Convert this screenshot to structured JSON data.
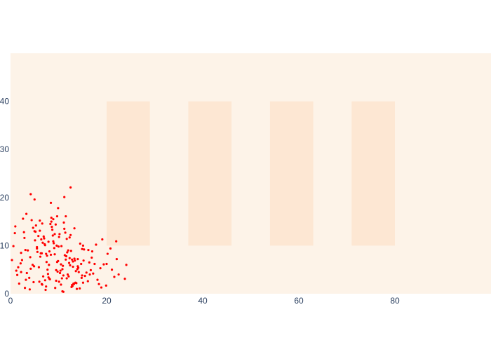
{
  "chart_data": {
    "type": "scatter",
    "title": "",
    "xlabel": "",
    "ylabel": "",
    "xlim": [
      0,
      100
    ],
    "ylim": [
      0,
      50
    ],
    "x_ticks": [
      0,
      20,
      40,
      60,
      80
    ],
    "y_ticks": [
      0,
      10,
      20,
      30,
      40
    ],
    "grid": false,
    "legend": "none",
    "colors": {
      "plot_background": "#fdf3e8",
      "band": "#fde7d3",
      "marker": "#ff0000",
      "tick_text": "#2a3f5f"
    },
    "bands": [
      {
        "x0": 20,
        "x1": 29,
        "y0": 10,
        "y1": 40
      },
      {
        "x0": 37,
        "x1": 46,
        "y0": 10,
        "y1": 40
      },
      {
        "x0": 54,
        "x1": 63,
        "y0": 10,
        "y1": 40
      },
      {
        "x0": 71,
        "x1": 80,
        "y0": 10,
        "y1": 40
      }
    ],
    "points": {
      "x": [
        4.2,
        8.1,
        12.3,
        6.5,
        10.0,
        14.2,
        2.1,
        9.3,
        11.7,
        5.6,
        7.8,
        13.4,
        3.9,
        16.1,
        8.8,
        10.9,
        6.2,
        12.8,
        15.3,
        1.4,
        9.7,
        11.2,
        4.8,
        7.1,
        13.9,
        5.3,
        10.4,
        8.4,
        12.1,
        6.9,
        14.7,
        3.2,
        9.1,
        11.5,
        7.4,
        2.8,
        15.8,
        10.7,
        8.6,
        12.6,
        5.9,
        13.1,
        6.7,
        9.9,
        4.4,
        11.9,
        7.6,
        14.4,
        3.6,
        10.2,
        8.2,
        12.4,
        16.4,
        5.1,
        9.5,
        6.3,
        13.6,
        11.1,
        2.4,
        7.9,
        10.6,
        15.1,
        4.6,
        8.9,
        12.9,
        6.1,
        14.1,
        9.2,
        3.4,
        11.4,
        7.3,
        13.3,
        5.5,
        10.1,
        8.5,
        16.7,
        2.9,
        12.2,
        6.6,
        9.6,
        14.9,
        4.1,
        11.8,
        7.7,
        13.7,
        5.8,
        10.5,
        8.3,
        15.5,
        3.1,
        12.7,
        6.4,
        9.8,
        11.3,
        4.9,
        14.5,
        7.2,
        13.0,
        8.7,
        10.8,
        17.2,
        18.1,
        19.4,
        20.2,
        21.6,
        17.8,
        18.7,
        19.9,
        16.9,
        22.5,
        18.4,
        20.8,
        17.5,
        19.1,
        23.8,
        21.1,
        18.9,
        17.0,
        22.1,
        24.1,
        1.0,
        0.6,
        1.8,
        2.6,
        0.3,
        1.2,
        3.0,
        0.9,
        2.2,
        1.6,
        8.0,
        10.3,
        12.0,
        6.0,
        9.0,
        11.0,
        7.0,
        13.0,
        5.0,
        14.0,
        8.5,
        10.5,
        12.5,
        6.5,
        9.5,
        11.5,
        7.5,
        13.5,
        5.5,
        4.0,
        6.8,
        9.4,
        11.6,
        7.2,
        13.2,
        5.2,
        10.8,
        8.1,
        12.3,
        15.2,
        3.3,
        14.8,
        4.7,
        16.2,
        2.2,
        11.0,
        9.9,
        7.9,
        13.8,
        6.1,
        4.2,
        22.0,
        20.0,
        5.0,
        12.5,
        9.7,
        14.9,
        11.2,
        8.4,
        16.5,
        13.3,
        10.1,
        7.4,
        15.1,
        6.6,
        9.2,
        12.8,
        8.9,
        11.7,
        14.0
      ],
      "y": [
        5.2,
        3.1,
        7.4,
        2.0,
        9.8,
        4.5,
        6.3,
        1.2,
        11.4,
        8.7,
        4.1,
        6.9,
        3.3,
        2.6,
        12.1,
        5.8,
        7.7,
        1.8,
        9.2,
        3.9,
        6.6,
        13.5,
        2.4,
        10.3,
        5.1,
        14.2,
        4.8,
        8.1,
        3.6,
        11.9,
        6.2,
        2.9,
        9.5,
        7.1,
        1.5,
        12.8,
        4.4,
        3.2,
        13.9,
        8.9,
        5.5,
        2.1,
        10.6,
        6.8,
        15.3,
        4.0,
        7.9,
        1.1,
        9.0,
        12.4,
        3.0,
        5.9,
        6.5,
        11.1,
        2.7,
        8.4,
        4.7,
        14.8,
        7.0,
        3.4,
        9.9,
        2.3,
        6.0,
        10.9,
        1.6,
        13.1,
        5.4,
        8.2,
        4.3,
        12.7,
        0.8,
        7.3,
        9.4,
        2.5,
        15.8,
        4.9,
        11.6,
        6.4,
        1.9,
        10.0,
        3.8,
        7.6,
        8.6,
        5.0,
        2.2,
        12.0,
        6.1,
        14.5,
        3.7,
        9.1,
        1.4,
        11.3,
        4.6,
        8.0,
        5.7,
        10.4,
        2.8,
        6.7,
        13.3,
        0.5,
        4.2,
        2.9,
        6.1,
        8.3,
        3.5,
        10.2,
        5.3,
        1.7,
        7.5,
        4.0,
        2.0,
        9.4,
        6.2,
        11.3,
        3.1,
        5.0,
        1.3,
        8.8,
        7.2,
        6.0,
        14.0,
        9.9,
        2.1,
        15.6,
        7.0,
        4.8,
        1.2,
        12.6,
        8.5,
        5.5,
        6.0,
        4.3,
        9.0,
        2.5,
        10.5,
        3.8,
        11.5,
        5.6,
        13.0,
        7.2,
        15.0,
        1.9,
        12.2,
        8.4,
        4.9,
        16.1,
        6.6,
        2.3,
        9.7,
        0.9,
        3.6,
        14.4,
        7.8,
        10.1,
        2.0,
        12.9,
        5.1,
        8.8,
        11.7,
        6.9,
        16.6,
        3.3,
        13.7,
        9.1,
        4.5,
        0.4,
        17.8,
        10.8,
        1.0,
        15.2,
        20.7,
        10.9,
        6.2,
        19.6,
        22.1,
        16.1,
        9.3,
        20.1,
        18.9,
        4.0,
        13.6,
        11.8,
        8.3,
        10.0,
        14.6,
        12.4,
        7.1,
        15.5,
        3.2,
        5.7
      ]
    }
  }
}
